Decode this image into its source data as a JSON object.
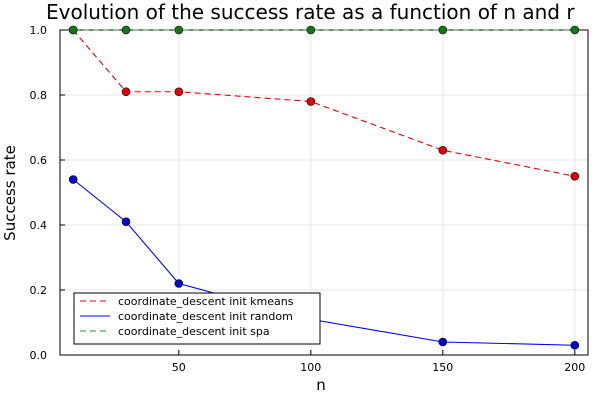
{
  "chart_data": {
    "type": "line",
    "title": "Evolution of the success rate as a function of n and r",
    "xlabel": "n",
    "ylabel": "Success rate",
    "x": [
      10,
      30,
      50,
      100,
      150,
      200
    ],
    "xlim": [
      5,
      205
    ],
    "ylim": [
      0,
      1
    ],
    "x_ticks": [
      "50",
      "100",
      "150",
      "200"
    ],
    "y_ticks": [
      "0.0",
      "0.2",
      "0.4",
      "0.6",
      "0.8",
      "1.0"
    ],
    "grid": true,
    "legend_position": "bottom-left",
    "series": [
      {
        "name": "coordinate_descent init kmeans",
        "values": [
          1.0,
          0.81,
          0.81,
          0.78,
          0.63,
          0.55
        ],
        "color": "#e0000b",
        "marker_color": "#e0000b",
        "dash": true
      },
      {
        "name": "coordinate_descent init random",
        "values": [
          0.54,
          0.41,
          0.22,
          0.11,
          0.04,
          0.03
        ],
        "color": "#0000ff",
        "marker_color": "#0000cc",
        "dash": false
      },
      {
        "name": "coordinate_descent init spa",
        "values": [
          1.0,
          1.0,
          1.0,
          1.0,
          1.0,
          1.0
        ],
        "color": "#2e8b2e",
        "marker_color": "#127a12",
        "dash": true
      }
    ]
  }
}
